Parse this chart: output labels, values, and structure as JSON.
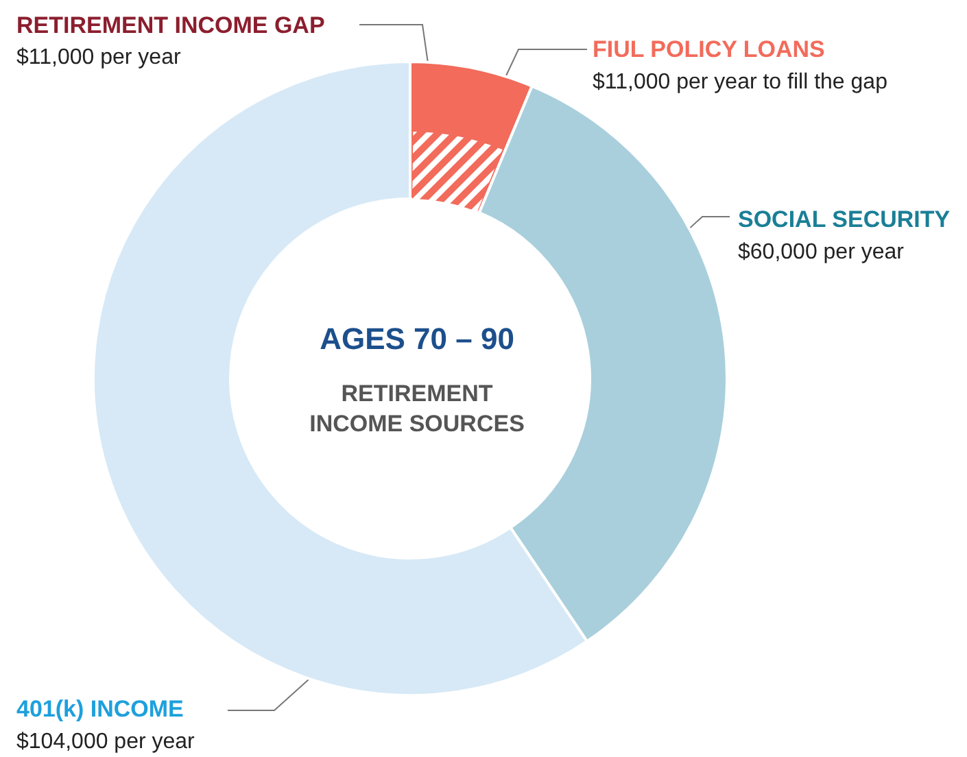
{
  "chart_data": {
    "type": "donut",
    "title": "AGES 70 – 90",
    "subtitle": "RETIREMENT\nINCOME SOURCES",
    "categories": [
      "FIUL POLICY LOANS",
      "SOCIAL SECURITY",
      "401(k) INCOME"
    ],
    "values": [
      11000,
      60000,
      104000
    ],
    "colors": [
      "#f26b5b",
      "#a9cfdc",
      "#d7e9f6"
    ],
    "value_labels": [
      "$11,000 per year to fill the gap",
      "$60,000 per year",
      "$104,000 per year"
    ],
    "annotations": [
      "RETIREMENT INCOME GAP",
      "$11,000 per year"
    ],
    "legend": false
  }
}
